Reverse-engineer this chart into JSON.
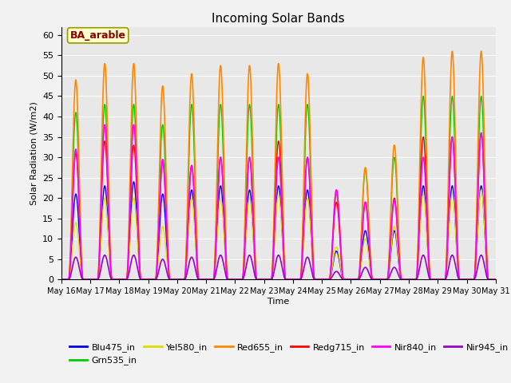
{
  "title": "Incoming Solar Bands",
  "xlabel": "Time",
  "ylabel": "Solar Radiation (W/m2)",
  "annotation": "BA_arable",
  "annotation_color": "#8B0000",
  "annotation_bg": "#FFFFCC",
  "annotation_edge": "#999900",
  "ylim": [
    0,
    62
  ],
  "yticks": [
    0,
    5,
    10,
    15,
    20,
    25,
    30,
    35,
    40,
    45,
    50,
    55,
    60
  ],
  "background_color": "#E8E8E8",
  "grid_color": "#FFFFFF",
  "fig_bg": "#F2F2F2",
  "series": [
    {
      "name": "Blu475_in",
      "color": "#0000EE",
      "lw": 1.0
    },
    {
      "name": "Grn535_in",
      "color": "#00CC00",
      "lw": 1.0
    },
    {
      "name": "Yel580_in",
      "color": "#DDDD00",
      "lw": 1.0
    },
    {
      "name": "Red655_in",
      "color": "#FF8800",
      "lw": 1.2
    },
    {
      "name": "Redg715_in",
      "color": "#FF0000",
      "lw": 1.0
    },
    {
      "name": "Nir840_in",
      "color": "#FF00FF",
      "lw": 1.2
    },
    {
      "name": "Nir945_in",
      "color": "#9900CC",
      "lw": 1.2
    }
  ],
  "red655_peaks": [
    49,
    53,
    53,
    47.5,
    50.5,
    52.5,
    52.5,
    53,
    50.5,
    22,
    27.5,
    33,
    54.5,
    56,
    56
  ],
  "nir840_peaks": [
    32,
    38,
    38,
    29.5,
    28,
    30,
    30,
    30,
    30,
    22,
    19,
    19.5,
    30,
    35,
    36
  ],
  "redg715_peaks": [
    31,
    34,
    33,
    29,
    28,
    30,
    30,
    34,
    30,
    19,
    19,
    20,
    35,
    35,
    36
  ],
  "grn535_peaks": [
    41,
    43,
    43,
    38,
    43,
    43,
    43,
    43,
    43,
    21,
    27,
    30,
    45,
    45,
    45
  ],
  "yel580_peaks": [
    14,
    20,
    20,
    13,
    20,
    20,
    20,
    21,
    20,
    8,
    10,
    13,
    21,
    21,
    22
  ],
  "blu475_peaks": [
    21,
    23,
    24,
    21,
    22,
    23,
    22,
    23,
    22,
    7,
    12,
    12,
    23,
    23,
    23
  ],
  "nir945_peaks": [
    5.5,
    6,
    6,
    5,
    5.5,
    6,
    6,
    6,
    5.5,
    2,
    3,
    3,
    6,
    6,
    6
  ],
  "n_per_day": 144,
  "n_days": 15
}
